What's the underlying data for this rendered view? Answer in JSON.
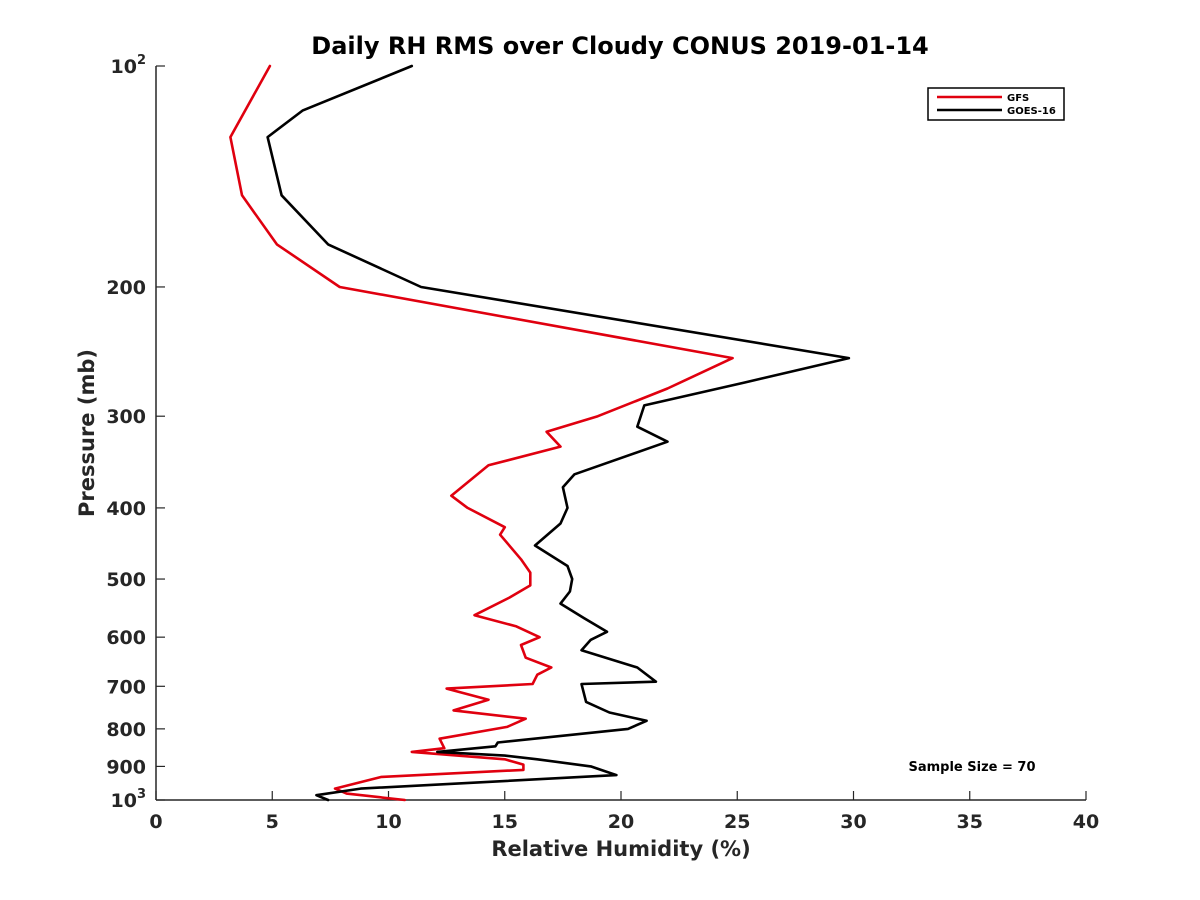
{
  "chart_data": {
    "type": "line",
    "title": "Daily RH RMS over Cloudy CONUS 2019-01-14",
    "xlabel": "Relative Humidity (%)",
    "ylabel": "Pressure (mb)",
    "xlim": [
      0,
      40
    ],
    "ylim": [
      100,
      1000
    ],
    "y_scale": "log",
    "y_reversed": true,
    "x_ticks": [
      "0",
      "5",
      "10",
      "15",
      "20",
      "25",
      "30",
      "35",
      "40"
    ],
    "x_tick_values": [
      0,
      5,
      10,
      15,
      20,
      25,
      30,
      35,
      40
    ],
    "y_ticks": [
      {
        "value": 100,
        "label": "10",
        "exp": "2"
      },
      {
        "value": 200,
        "label": "200"
      },
      {
        "value": 300,
        "label": "300"
      },
      {
        "value": 400,
        "label": "400"
      },
      {
        "value": 500,
        "label": "500"
      },
      {
        "value": 600,
        "label": "600"
      },
      {
        "value": 700,
        "label": "700"
      },
      {
        "value": 800,
        "label": "800"
      },
      {
        "value": 900,
        "label": "900"
      },
      {
        "value": 1000,
        "label": "10",
        "exp": "3"
      }
    ],
    "grid": false,
    "legend_position": "top-right",
    "annotation": "Sample Size = 70",
    "series": [
      {
        "name": "GFS",
        "color": "#e0000f",
        "points": [
          [
            4.9,
            100
          ],
          [
            3.2,
            125
          ],
          [
            3.7,
            150
          ],
          [
            5.2,
            175
          ],
          [
            7.9,
            200
          ],
          [
            24.8,
            250
          ],
          [
            22.0,
            275
          ],
          [
            19.0,
            300
          ],
          [
            16.8,
            315
          ],
          [
            17.4,
            330
          ],
          [
            14.3,
            350
          ],
          [
            12.7,
            385
          ],
          [
            13.4,
            400
          ],
          [
            15.0,
            425
          ],
          [
            14.8,
            435
          ],
          [
            15.7,
            470
          ],
          [
            16.1,
            490
          ],
          [
            16.1,
            510
          ],
          [
            15.2,
            530
          ],
          [
            13.7,
            560
          ],
          [
            15.5,
            580
          ],
          [
            16.5,
            600
          ],
          [
            15.7,
            615
          ],
          [
            15.9,
            640
          ],
          [
            17.0,
            660
          ],
          [
            16.4,
            675
          ],
          [
            16.2,
            695
          ],
          [
            12.5,
            705
          ],
          [
            14.3,
            730
          ],
          [
            12.8,
            755
          ],
          [
            15.9,
            775
          ],
          [
            15.1,
            795
          ],
          [
            12.2,
            825
          ],
          [
            12.4,
            850
          ],
          [
            11.0,
            860
          ],
          [
            15.0,
            880
          ],
          [
            15.8,
            895
          ],
          [
            15.8,
            910
          ],
          [
            9.7,
            930
          ],
          [
            7.7,
            965
          ],
          [
            8.2,
            980
          ],
          [
            10.7,
            1000
          ]
        ]
      },
      {
        "name": "GOES-16",
        "color": "#000000",
        "points": [
          [
            11.0,
            100
          ],
          [
            6.3,
            115
          ],
          [
            4.8,
            125
          ],
          [
            5.4,
            150
          ],
          [
            7.4,
            175
          ],
          [
            11.4,
            200
          ],
          [
            29.8,
            250
          ],
          [
            25.3,
            270
          ],
          [
            21.0,
            290
          ],
          [
            20.7,
            310
          ],
          [
            22.0,
            325
          ],
          [
            18.0,
            360
          ],
          [
            17.5,
            375
          ],
          [
            17.7,
            400
          ],
          [
            17.4,
            420
          ],
          [
            16.3,
            450
          ],
          [
            17.7,
            480
          ],
          [
            17.9,
            500
          ],
          [
            17.8,
            520
          ],
          [
            17.4,
            540
          ],
          [
            18.4,
            565
          ],
          [
            19.4,
            590
          ],
          [
            18.7,
            605
          ],
          [
            18.3,
            625
          ],
          [
            20.7,
            660
          ],
          [
            21.5,
            690
          ],
          [
            18.3,
            695
          ],
          [
            18.5,
            735
          ],
          [
            19.5,
            760
          ],
          [
            21.1,
            780
          ],
          [
            20.3,
            800
          ],
          [
            14.7,
            835
          ],
          [
            14.6,
            845
          ],
          [
            12.1,
            860
          ],
          [
            15.0,
            870
          ],
          [
            16.4,
            880
          ],
          [
            18.7,
            900
          ],
          [
            19.8,
            925
          ],
          [
            8.8,
            965
          ],
          [
            6.9,
            985
          ],
          [
            7.4,
            1000
          ]
        ]
      }
    ]
  }
}
